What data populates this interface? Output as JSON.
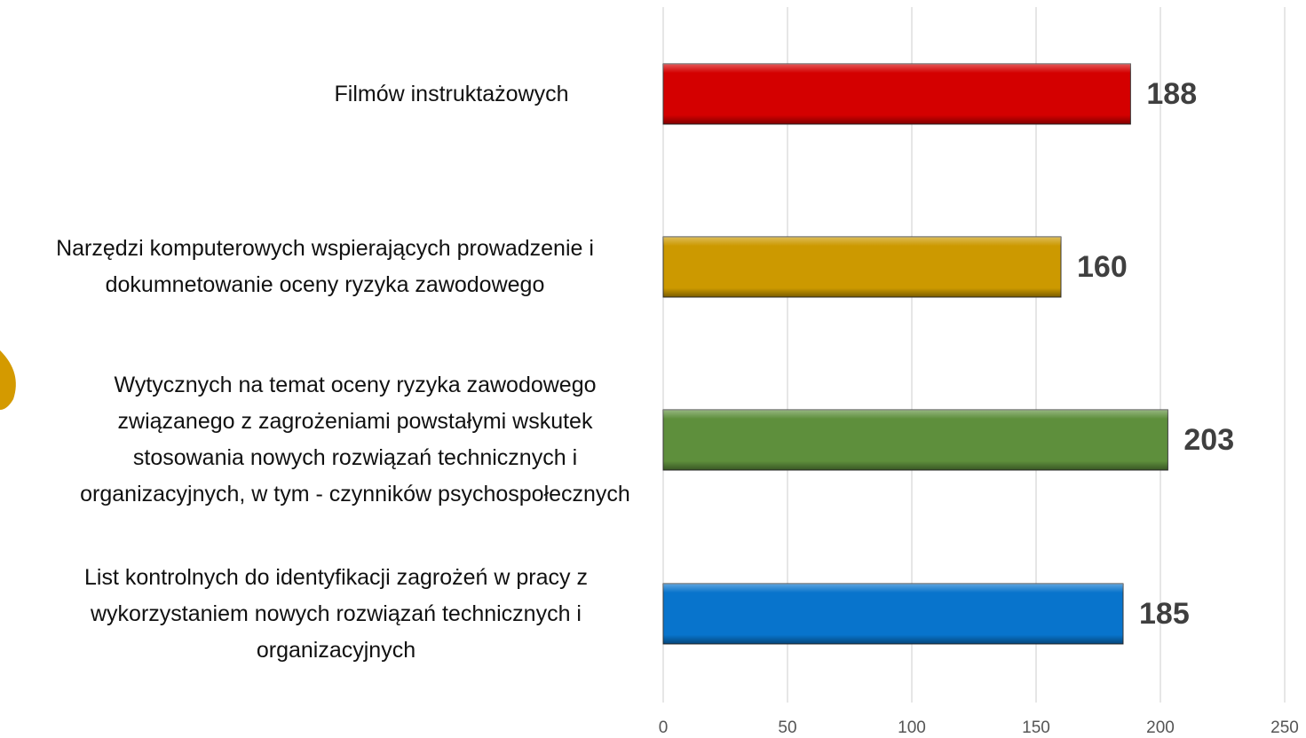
{
  "chart_data": {
    "type": "barh",
    "categories": [
      "Filmów instruktażowych",
      "Narzędzi komputerowych wspierających prowadzenie i dokumnetowanie oceny ryzyka zawodowego",
      "Wytycznych na temat oceny ryzyka zawodowego związanego z zagrożeniami powstałymi wskutek stosowania nowych rozwiązań technicznych i organizacyjnych, w tym - czynników psychospołecznych",
      "List kontrolnych do identyfikacji zagrożeń w pracy z wykorzystaniem nowych rozwiązań technicznych i organizacyjnych"
    ],
    "values": [
      188,
      160,
      203,
      185
    ],
    "colors": [
      "#d40000",
      "#cc9900",
      "#5e8f3c",
      "#0874cc"
    ],
    "xlim": [
      0,
      250
    ],
    "xticks": [
      0,
      50,
      100,
      150,
      200,
      250
    ],
    "grid": true
  }
}
